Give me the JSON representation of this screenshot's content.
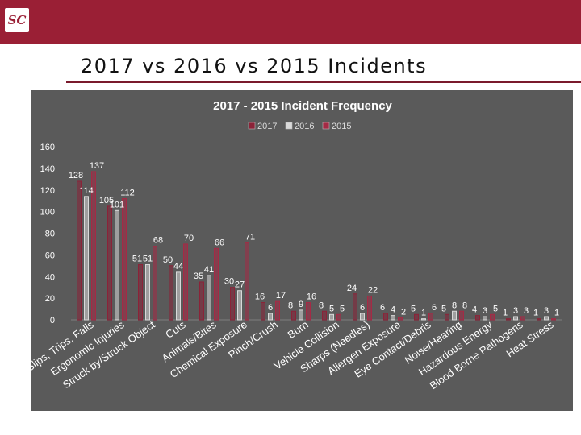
{
  "slide": {
    "title": "2017 vs 2016 vs 2015 Incidents",
    "logo_text": "SC"
  },
  "colors": {
    "header_bar": "#9a1f35",
    "panel_bg": "#5a5a5a",
    "series_2017": "#8b2338",
    "series_2016": "#d9d9d9",
    "series_2015": "#a52a45"
  },
  "chart_data": {
    "type": "bar",
    "title": "2017 - 2015 Incident Frequency",
    "xlabel": "",
    "ylabel": "",
    "ylim": [
      0,
      160
    ],
    "yticks": [
      0,
      20,
      40,
      60,
      80,
      100,
      120,
      140,
      160
    ],
    "grid": false,
    "legend_position": "top-center",
    "categories": [
      "Slips, Trips, Falls",
      "Ergonomic Injuries",
      "Struck by/Struck Object",
      "Cuts",
      "Animals/Bites",
      "Chemical Exposure",
      "Pinch/Crush",
      "Burn",
      "Vehicle Collision",
      "Sharps (Needles)",
      "Allergen Exposure",
      "Eye Contact/Debris",
      "Noise/Hearing",
      "Hazardous Energy",
      "Blood Borne Pathogens",
      "Heat Stress"
    ],
    "series": [
      {
        "name": "2017",
        "values": [
          128,
          105,
          51,
          50,
          35,
          30,
          16,
          8,
          8,
          24,
          6,
          5,
          5,
          4,
          1,
          1
        ]
      },
      {
        "name": "2016",
        "values": [
          114,
          101,
          51,
          44,
          41,
          27,
          6,
          9,
          5,
          6,
          4,
          1,
          8,
          3,
          3,
          3
        ]
      },
      {
        "name": "2015",
        "values": [
          137,
          112,
          68,
          70,
          66,
          71,
          17,
          16,
          5,
          22,
          2,
          6,
          8,
          5,
          3,
          1
        ]
      }
    ]
  }
}
